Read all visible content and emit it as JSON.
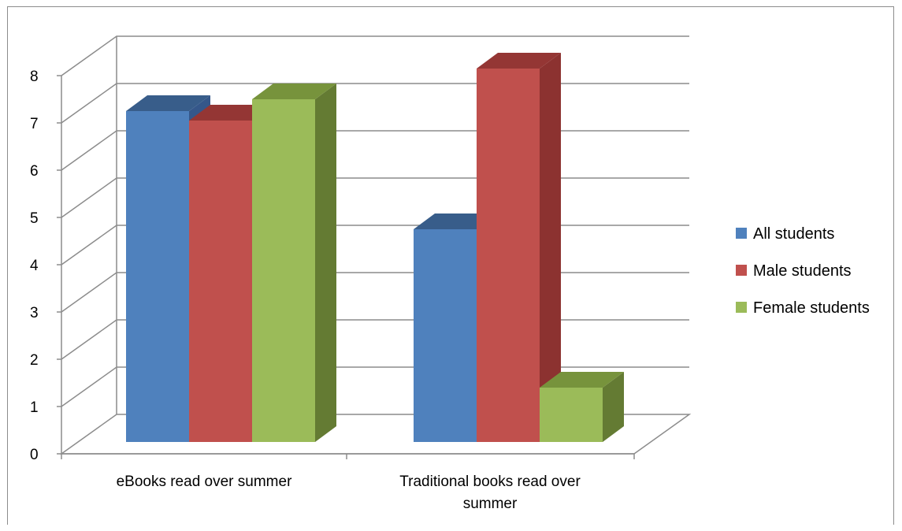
{
  "chart_data": {
    "type": "bar",
    "style": "3d-clustered-column",
    "title": "",
    "xlabel": "",
    "ylabel": "",
    "categories": [
      "eBooks read over summer",
      "Traditional books read over summer"
    ],
    "series": [
      {
        "name": "All students",
        "values": [
          7.0,
          4.5
        ],
        "color": "#4f81bd",
        "top_color": "#385d8a",
        "side_color": "#35578a"
      },
      {
        "name": "Male students",
        "values": [
          6.8,
          7.9
        ],
        "color": "#c0504d",
        "top_color": "#943634",
        "side_color": "#8c3230"
      },
      {
        "name": "Female students",
        "values": [
          7.25,
          1.15
        ],
        "color": "#9bbb59",
        "top_color": "#77933c",
        "side_color": "#647b33"
      }
    ],
    "ylim": [
      0,
      8
    ],
    "yticks": [
      "0",
      "1",
      "2",
      "3",
      "4",
      "5",
      "6",
      "7",
      "8"
    ],
    "grid": true,
    "legend_position": "right"
  }
}
